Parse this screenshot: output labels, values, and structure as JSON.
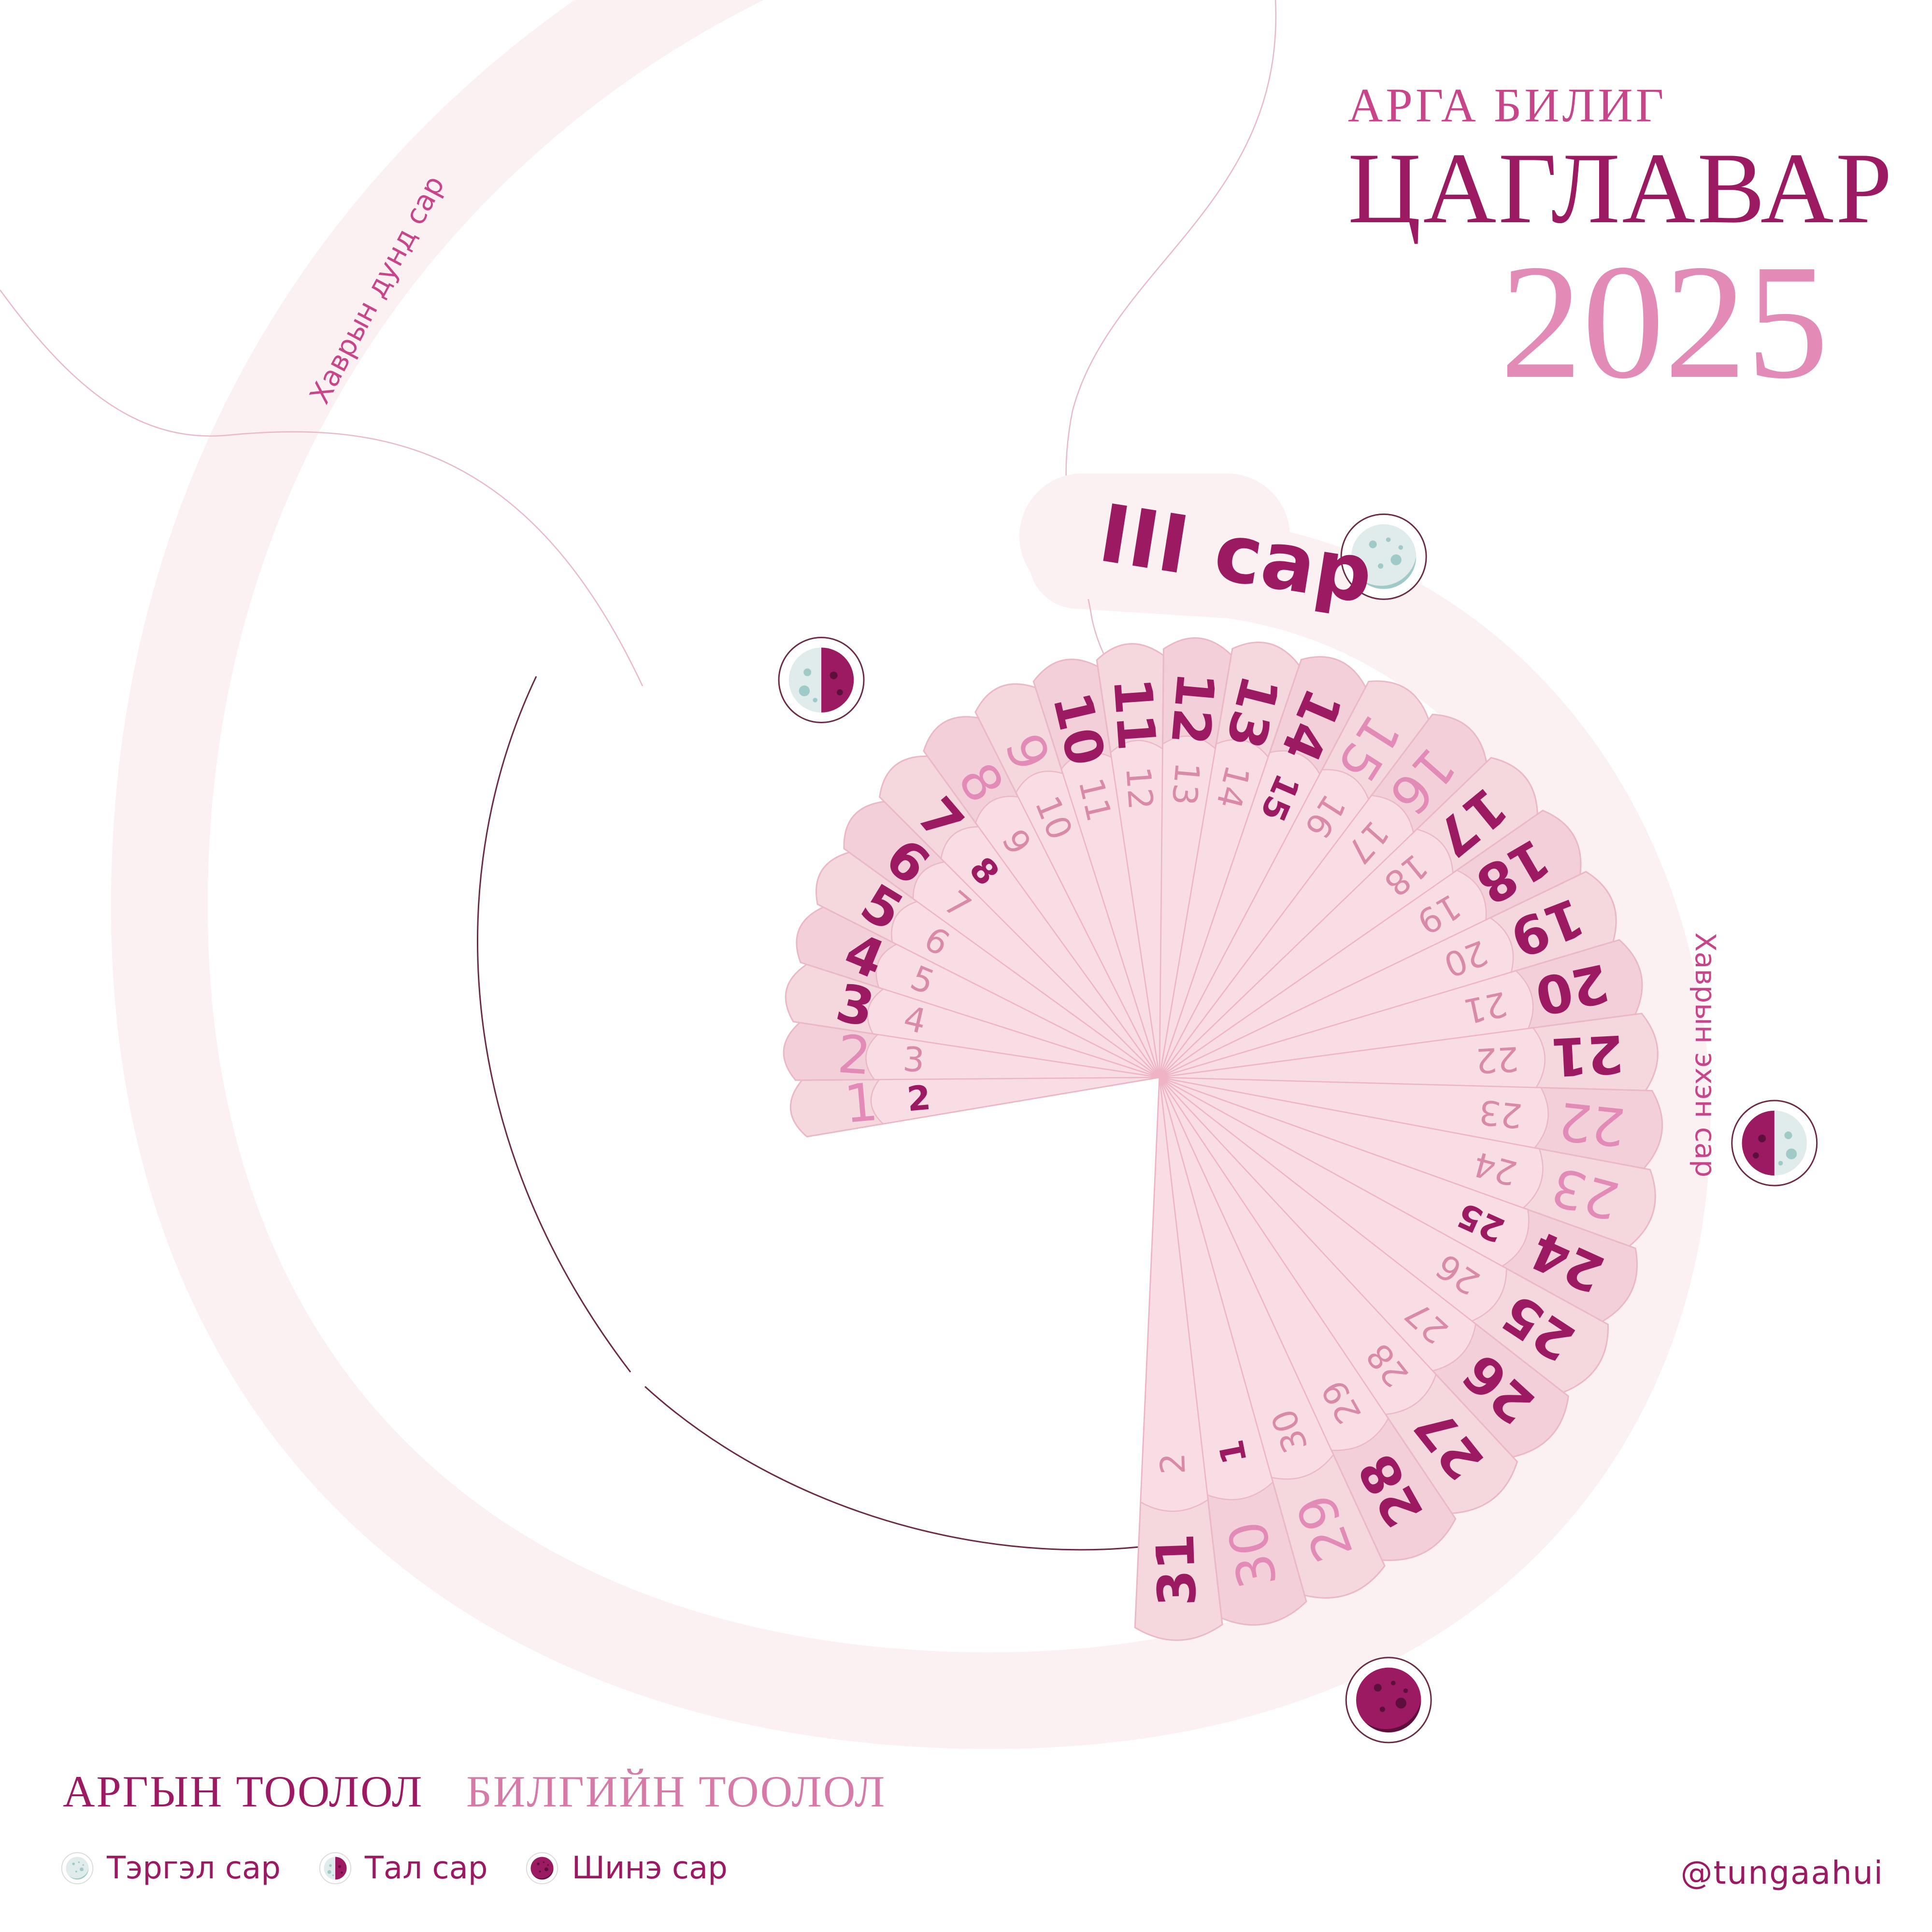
{
  "colors": {
    "deep": "#9c1a62",
    "mid": "#e28bb6",
    "soft": "#d67aa7",
    "band": "#fbf0f2",
    "petal_outer": "#f5d7de",
    "petal_inner": "#f8dde4",
    "petal_edge": "#eab8c6",
    "line": "#6b2a45",
    "moon_light": "#dfeceb",
    "moon_accent": "#9fcac8"
  },
  "brand": {
    "subtitle": "АРГА БИЛИГ",
    "title": "ЦАГЛАВАР",
    "year": "2025"
  },
  "month": {
    "label": "III сар"
  },
  "side_labels": {
    "left": "Хаврын дунд сар",
    "right": "Хаврын эхэн сар"
  },
  "calendar": {
    "solar_days": [
      {
        "d": "1",
        "s": "light"
      },
      {
        "d": "2",
        "s": "light"
      },
      {
        "d": "3",
        "s": "bold"
      },
      {
        "d": "4",
        "s": "bold"
      },
      {
        "d": "5",
        "s": "bold"
      },
      {
        "d": "6",
        "s": "bold"
      },
      {
        "d": "7",
        "s": "bold"
      },
      {
        "d": "8",
        "s": "light"
      },
      {
        "d": "9",
        "s": "light"
      },
      {
        "d": "10",
        "s": "bold"
      },
      {
        "d": "11",
        "s": "bold"
      },
      {
        "d": "12",
        "s": "bold"
      },
      {
        "d": "13",
        "s": "bold"
      },
      {
        "d": "14",
        "s": "bold"
      },
      {
        "d": "15",
        "s": "light"
      },
      {
        "d": "16",
        "s": "light"
      },
      {
        "d": "17",
        "s": "bold"
      },
      {
        "d": "18",
        "s": "bold"
      },
      {
        "d": "19",
        "s": "bold"
      },
      {
        "d": "20",
        "s": "bold"
      },
      {
        "d": "21",
        "s": "bold"
      },
      {
        "d": "22",
        "s": "light"
      },
      {
        "d": "23",
        "s": "light"
      },
      {
        "d": "24",
        "s": "bold"
      },
      {
        "d": "25",
        "s": "bold"
      },
      {
        "d": "26",
        "s": "bold"
      },
      {
        "d": "27",
        "s": "bold"
      },
      {
        "d": "28",
        "s": "bold"
      },
      {
        "d": "29",
        "s": "light"
      },
      {
        "d": "30",
        "s": "light"
      },
      {
        "d": "31",
        "s": "bold"
      }
    ],
    "lunar_days": [
      {
        "d": "2",
        "s": "bold"
      },
      {
        "d": "3",
        "s": "thin"
      },
      {
        "d": "4",
        "s": "thin"
      },
      {
        "d": "5",
        "s": "thin"
      },
      {
        "d": "6",
        "s": "thin"
      },
      {
        "d": "7",
        "s": "thin"
      },
      {
        "d": "8",
        "s": "bold"
      },
      {
        "d": "9",
        "s": "thin"
      },
      {
        "d": "10",
        "s": "thin"
      },
      {
        "d": "11",
        "s": "thin"
      },
      {
        "d": "12",
        "s": "thin"
      },
      {
        "d": "13",
        "s": "thin"
      },
      {
        "d": "14",
        "s": "thin"
      },
      {
        "d": "15",
        "s": "bold"
      },
      {
        "d": "16",
        "s": "thin"
      },
      {
        "d": "17",
        "s": "thin"
      },
      {
        "d": "18",
        "s": "thin"
      },
      {
        "d": "19",
        "s": "thin"
      },
      {
        "d": "20",
        "s": "thin"
      },
      {
        "d": "21",
        "s": "thin"
      },
      {
        "d": "22",
        "s": "thin"
      },
      {
        "d": "23",
        "s": "thin"
      },
      {
        "d": "24",
        "s": "thin"
      },
      {
        "d": "25",
        "s": "bold"
      },
      {
        "d": "26",
        "s": "thin"
      },
      {
        "d": "27",
        "s": "thin"
      },
      {
        "d": "28",
        "s": "thin"
      },
      {
        "d": "29",
        "s": "thin"
      },
      {
        "d": "30",
        "s": "thin"
      },
      {
        "d": "1",
        "s": "bold"
      },
      {
        "d": "2",
        "s": "thin"
      }
    ],
    "moon_markers": [
      {
        "phase": "half-moon",
        "day": "7"
      },
      {
        "phase": "full-moon",
        "day": "14"
      },
      {
        "phase": "half-moon",
        "day": "22"
      },
      {
        "phase": "new-moon",
        "day": "29"
      }
    ]
  },
  "calculations": {
    "arga": "АРГЫН ТООЛОЛ",
    "bilig": "БИЛГИЙН  ТООЛОЛ"
  },
  "legend": [
    {
      "icon": "full-moon-icon",
      "label": "Тэргэл сар"
    },
    {
      "icon": "half-moon-icon",
      "label": "Тал сар"
    },
    {
      "icon": "new-moon-icon",
      "label": "Шинэ сар"
    }
  ],
  "handle": "@tungaahui"
}
